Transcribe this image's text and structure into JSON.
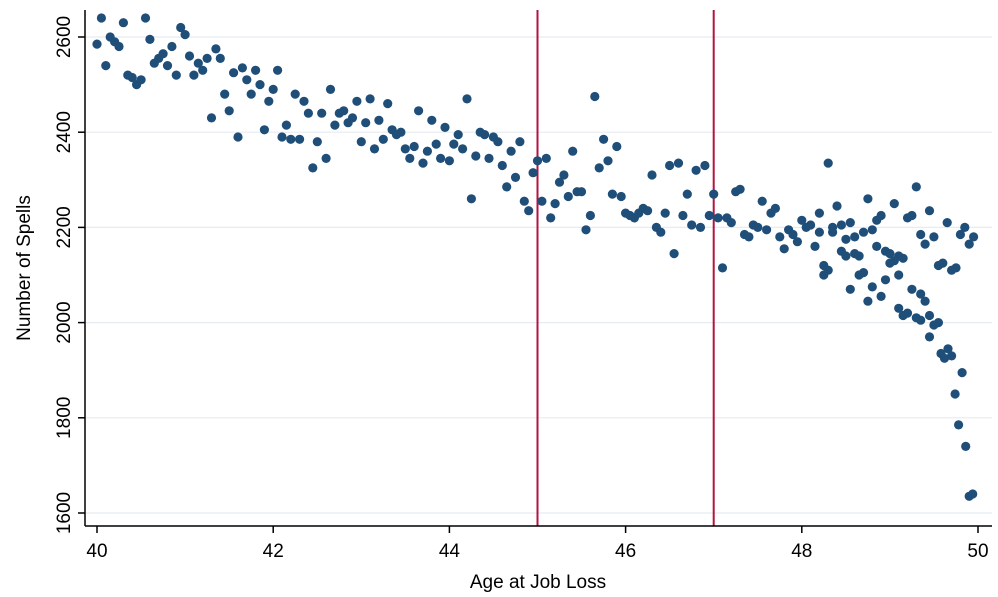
{
  "chart_data": {
    "type": "scatter",
    "title": "",
    "xlabel": "Age at Job Loss",
    "ylabel": "Number of Spells",
    "xlim": [
      40,
      50
    ],
    "ylim": [
      1600,
      2650
    ],
    "x_ticks": [
      40,
      42,
      44,
      46,
      48,
      50
    ],
    "y_ticks": [
      1600,
      1800,
      2000,
      2200,
      2400,
      2600
    ],
    "grid": "horizontal",
    "colors": {
      "marker": "#1f4e79",
      "refline": "#b5123f",
      "grid": "#e6ecf0"
    },
    "reference_lines_x": [
      45,
      47
    ],
    "points": [
      [
        40.0,
        2585
      ],
      [
        40.05,
        2640
      ],
      [
        40.1,
        2540
      ],
      [
        40.15,
        2600
      ],
      [
        40.2,
        2590
      ],
      [
        40.25,
        2580
      ],
      [
        40.3,
        2630
      ],
      [
        40.35,
        2520
      ],
      [
        40.4,
        2515
      ],
      [
        40.45,
        2500
      ],
      [
        40.5,
        2510
      ],
      [
        40.55,
        2640
      ],
      [
        40.6,
        2595
      ],
      [
        40.65,
        2545
      ],
      [
        40.7,
        2555
      ],
      [
        40.75,
        2565
      ],
      [
        40.8,
        2540
      ],
      [
        40.85,
        2580
      ],
      [
        40.9,
        2520
      ],
      [
        40.95,
        2620
      ],
      [
        41.0,
        2605
      ],
      [
        41.05,
        2560
      ],
      [
        41.1,
        2520
      ],
      [
        41.15,
        2545
      ],
      [
        41.2,
        2530
      ],
      [
        41.25,
        2555
      ],
      [
        41.3,
        2430
      ],
      [
        41.35,
        2575
      ],
      [
        41.4,
        2555
      ],
      [
        41.45,
        2480
      ],
      [
        41.5,
        2445
      ],
      [
        41.55,
        2525
      ],
      [
        41.6,
        2390
      ],
      [
        41.65,
        2535
      ],
      [
        41.7,
        2510
      ],
      [
        41.75,
        2480
      ],
      [
        41.8,
        2530
      ],
      [
        41.85,
        2500
      ],
      [
        41.9,
        2405
      ],
      [
        41.95,
        2465
      ],
      [
        42.0,
        2490
      ],
      [
        42.05,
        2530
      ],
      [
        42.1,
        2390
      ],
      [
        42.15,
        2415
      ],
      [
        42.2,
        2385
      ],
      [
        42.25,
        2480
      ],
      [
        42.3,
        2385
      ],
      [
        42.35,
        2465
      ],
      [
        42.4,
        2440
      ],
      [
        42.45,
        2325
      ],
      [
        42.5,
        2380
      ],
      [
        42.55,
        2440
      ],
      [
        42.6,
        2345
      ],
      [
        42.65,
        2490
      ],
      [
        42.7,
        2415
      ],
      [
        42.75,
        2440
      ],
      [
        42.8,
        2445
      ],
      [
        42.85,
        2420
      ],
      [
        42.9,
        2430
      ],
      [
        42.95,
        2465
      ],
      [
        43.0,
        2380
      ],
      [
        43.05,
        2420
      ],
      [
        43.1,
        2470
      ],
      [
        43.15,
        2365
      ],
      [
        43.2,
        2425
      ],
      [
        43.25,
        2385
      ],
      [
        43.3,
        2460
      ],
      [
        43.35,
        2405
      ],
      [
        43.4,
        2395
      ],
      [
        43.45,
        2400
      ],
      [
        43.5,
        2365
      ],
      [
        43.55,
        2345
      ],
      [
        43.6,
        2370
      ],
      [
        43.65,
        2445
      ],
      [
        43.7,
        2335
      ],
      [
        43.75,
        2360
      ],
      [
        43.8,
        2425
      ],
      [
        43.85,
        2375
      ],
      [
        43.9,
        2345
      ],
      [
        43.95,
        2410
      ],
      [
        44.0,
        2340
      ],
      [
        44.05,
        2375
      ],
      [
        44.1,
        2395
      ],
      [
        44.15,
        2365
      ],
      [
        44.2,
        2470
      ],
      [
        44.25,
        2260
      ],
      [
        44.3,
        2350
      ],
      [
        44.35,
        2400
      ],
      [
        44.4,
        2395
      ],
      [
        44.45,
        2345
      ],
      [
        44.5,
        2390
      ],
      [
        44.55,
        2380
      ],
      [
        44.6,
        2330
      ],
      [
        44.65,
        2285
      ],
      [
        44.7,
        2360
      ],
      [
        44.75,
        2305
      ],
      [
        44.8,
        2380
      ],
      [
        44.85,
        2255
      ],
      [
        44.9,
        2235
      ],
      [
        44.95,
        2315
      ],
      [
        45.0,
        2340
      ],
      [
        45.05,
        2255
      ],
      [
        45.1,
        2345
      ],
      [
        45.15,
        2220
      ],
      [
        45.2,
        2250
      ],
      [
        45.25,
        2295
      ],
      [
        45.3,
        2310
      ],
      [
        45.35,
        2265
      ],
      [
        45.4,
        2360
      ],
      [
        45.45,
        2275
      ],
      [
        45.5,
        2275
      ],
      [
        45.55,
        2195
      ],
      [
        45.6,
        2225
      ],
      [
        45.65,
        2475
      ],
      [
        45.7,
        2325
      ],
      [
        45.75,
        2385
      ],
      [
        45.8,
        2340
      ],
      [
        45.85,
        2270
      ],
      [
        45.9,
        2370
      ],
      [
        45.95,
        2265
      ],
      [
        46.0,
        2230
      ],
      [
        46.05,
        2225
      ],
      [
        46.1,
        2220
      ],
      [
        46.15,
        2230
      ],
      [
        46.2,
        2240
      ],
      [
        46.25,
        2235
      ],
      [
        46.3,
        2310
      ],
      [
        46.35,
        2200
      ],
      [
        46.4,
        2190
      ],
      [
        46.45,
        2230
      ],
      [
        46.5,
        2330
      ],
      [
        46.55,
        2145
      ],
      [
        46.6,
        2335
      ],
      [
        46.65,
        2225
      ],
      [
        46.7,
        2270
      ],
      [
        46.75,
        2205
      ],
      [
        46.8,
        2320
      ],
      [
        46.85,
        2200
      ],
      [
        46.9,
        2330
      ],
      [
        46.95,
        2225
      ],
      [
        47.0,
        2270
      ],
      [
        47.05,
        2220
      ],
      [
        47.1,
        2115
      ],
      [
        47.15,
        2220
      ],
      [
        47.2,
        2210
      ],
      [
        47.25,
        2275
      ],
      [
        47.3,
        2280
      ],
      [
        47.35,
        2185
      ],
      [
        47.4,
        2180
      ],
      [
        47.45,
        2205
      ],
      [
        47.5,
        2200
      ],
      [
        47.55,
        2255
      ],
      [
        47.6,
        2195
      ],
      [
        47.65,
        2230
      ],
      [
        47.7,
        2240
      ],
      [
        47.75,
        2180
      ],
      [
        47.8,
        2155
      ],
      [
        47.85,
        2195
      ],
      [
        47.9,
        2185
      ],
      [
        47.95,
        2170
      ],
      [
        48.0,
        2215
      ],
      [
        48.05,
        2200
      ],
      [
        48.1,
        2205
      ],
      [
        48.15,
        2160
      ],
      [
        48.2,
        2190
      ],
      [
        48.25,
        2100
      ],
      [
        48.3,
        2335
      ],
      [
        48.35,
        2200
      ],
      [
        48.4,
        2245
      ],
      [
        48.45,
        2205
      ],
      [
        48.5,
        2175
      ],
      [
        48.55,
        2210
      ],
      [
        48.6,
        2180
      ],
      [
        48.65,
        2140
      ],
      [
        48.7,
        2190
      ],
      [
        48.75,
        2260
      ],
      [
        48.8,
        2195
      ],
      [
        48.85,
        2215
      ],
      [
        48.9,
        2225
      ],
      [
        48.95,
        2150
      ],
      [
        49.0,
        2145
      ],
      [
        49.05,
        2250
      ],
      [
        49.1,
        2140
      ],
      [
        49.15,
        2135
      ],
      [
        49.2,
        2220
      ],
      [
        49.25,
        2225
      ],
      [
        49.3,
        2285
      ],
      [
        49.35,
        2185
      ],
      [
        49.4,
        2165
      ],
      [
        49.45,
        2235
      ],
      [
        49.5,
        2180
      ],
      [
        49.55,
        2120
      ],
      [
        49.6,
        2125
      ],
      [
        49.65,
        2210
      ],
      [
        49.7,
        2110
      ],
      [
        49.75,
        2115
      ],
      [
        49.8,
        2185
      ],
      [
        49.85,
        2200
      ],
      [
        49.9,
        2165
      ],
      [
        49.95,
        2180
      ],
      [
        48.2,
        2230
      ],
      [
        48.25,
        2120
      ],
      [
        48.3,
        2110
      ],
      [
        48.35,
        2190
      ],
      [
        48.45,
        2150
      ],
      [
        48.5,
        2140
      ],
      [
        48.55,
        2070
      ],
      [
        48.6,
        2145
      ],
      [
        48.65,
        2100
      ],
      [
        48.7,
        2105
      ],
      [
        48.75,
        2045
      ],
      [
        48.8,
        2075
      ],
      [
        48.85,
        2160
      ],
      [
        48.9,
        2055
      ],
      [
        48.95,
        2090
      ],
      [
        49.0,
        2125
      ],
      [
        49.05,
        2130
      ],
      [
        49.1,
        2030
      ],
      [
        49.15,
        2015
      ],
      [
        49.2,
        2020
      ],
      [
        49.25,
        2070
      ],
      [
        49.3,
        2010
      ],
      [
        49.35,
        2005
      ],
      [
        49.4,
        2045
      ],
      [
        49.45,
        2015
      ],
      [
        49.5,
        1995
      ],
      [
        49.55,
        2000
      ],
      [
        49.58,
        1935
      ],
      [
        49.62,
        1925
      ],
      [
        49.66,
        1945
      ],
      [
        49.7,
        1930
      ],
      [
        49.74,
        1850
      ],
      [
        49.78,
        1785
      ],
      [
        49.82,
        1895
      ],
      [
        49.86,
        1740
      ],
      [
        49.9,
        1635
      ],
      [
        49.94,
        1640
      ],
      [
        49.1,
        2100
      ],
      [
        49.35,
        2060
      ],
      [
        49.45,
        1970
      ]
    ]
  }
}
